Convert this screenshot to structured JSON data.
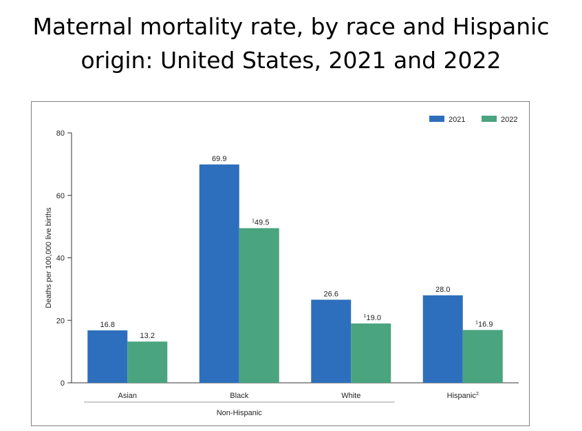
{
  "title_line1": "Maternal mortality rate, by race and Hispanic",
  "title_line2": "origin: United States, 2021 and 2022",
  "chart_data": {
    "type": "bar",
    "title": "Maternal mortality rate, by race and Hispanic origin: United States, 2021 and 2022",
    "ylabel": "Deaths per 100,000 live births",
    "xlabel": "",
    "ylim": [
      0,
      80
    ],
    "yticks": [
      "0",
      "20",
      "40",
      "60",
      "80"
    ],
    "grid": false,
    "legend_position": "top-right",
    "categories": [
      "Asian",
      "Black",
      "White",
      "Hispanic"
    ],
    "category_superscripts": [
      "",
      "",
      "",
      "2"
    ],
    "group_label": "Non-Hispanic",
    "group_span": [
      "Asian",
      "Black",
      "White"
    ],
    "series": [
      {
        "name": "2021",
        "color": "#2e6fbd",
        "values": [
          16.8,
          69.9,
          26.6,
          28.0
        ],
        "labels": [
          "16.8",
          "69.9",
          "26.6",
          "28.0"
        ],
        "label_superscripts": [
          "",
          "",
          "",
          ""
        ]
      },
      {
        "name": "2022",
        "color": "#4aa47f",
        "values": [
          13.2,
          49.5,
          19.0,
          16.9
        ],
        "labels": [
          "13.2",
          "49.5",
          "19.0",
          "16.9"
        ],
        "label_superscripts": [
          "",
          "1",
          "1",
          "1"
        ]
      }
    ]
  }
}
